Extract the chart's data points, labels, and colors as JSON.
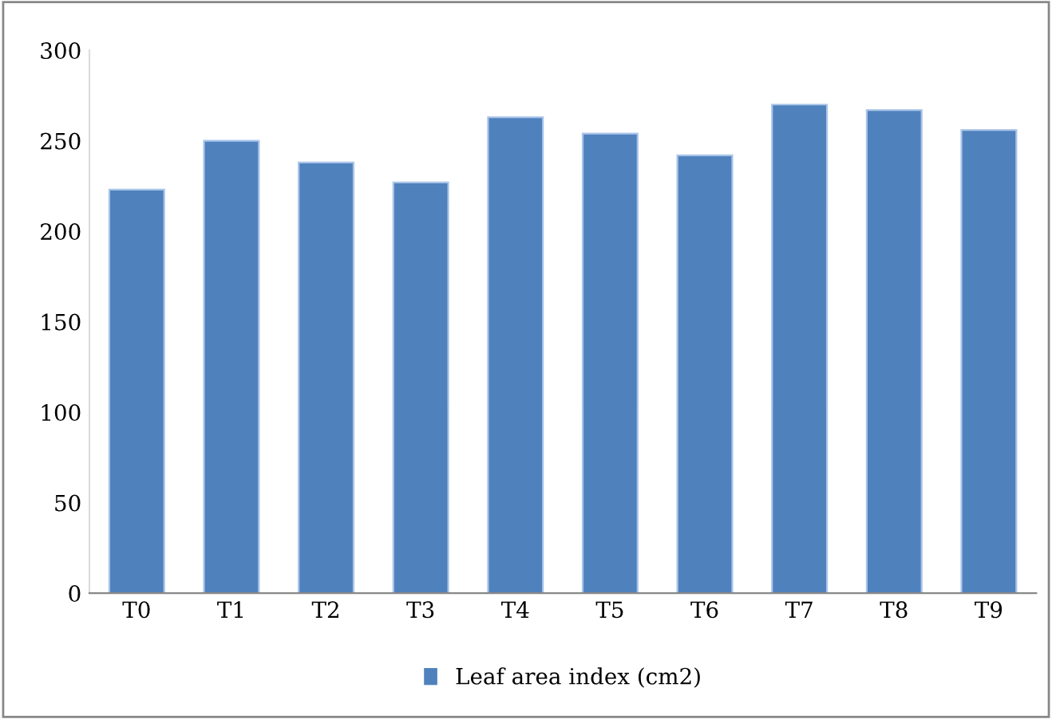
{
  "chart_data": {
    "type": "bar",
    "categories": [
      "T0",
      "T1",
      "T2",
      "T3",
      "T4",
      "T5",
      "T6",
      "T7",
      "T8",
      "T9"
    ],
    "series": [
      {
        "name": "Leaf area index (cm2)",
        "color": "#4f81bd",
        "values": [
          223,
          250,
          238,
          227,
          263,
          254,
          242,
          270,
          267,
          256
        ]
      }
    ],
    "ylim": [
      0,
      300
    ],
    "yticks": [
      0,
      50,
      100,
      150,
      200,
      250,
      300
    ],
    "grid": false,
    "legend": "bottom"
  }
}
